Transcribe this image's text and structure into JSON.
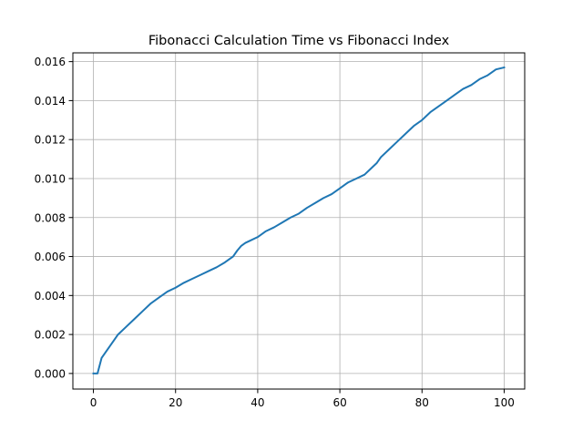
{
  "chart_data": {
    "type": "line",
    "title": "Fibonacci Calculation Time vs Fibonacci Index",
    "xlabel": "",
    "ylabel": "",
    "xlim": [
      -5,
      105
    ],
    "ylim": [
      -0.0008,
      0.01645
    ],
    "x_ticks": [
      0,
      20,
      40,
      60,
      80,
      100
    ],
    "x_tick_labels": [
      "0",
      "20",
      "40",
      "60",
      "80",
      "100"
    ],
    "y_ticks": [
      0,
      0.002,
      0.004,
      0.006,
      0.008,
      0.01,
      0.012,
      0.014,
      0.016
    ],
    "y_tick_labels": [
      "0.000",
      "0.002",
      "0.004",
      "0.006",
      "0.008",
      "0.010",
      "0.012",
      "0.014",
      "0.016"
    ],
    "grid": true,
    "legend": "none",
    "series": [
      {
        "color": "#1f77b4",
        "x": [
          0,
          1,
          2,
          4,
          6,
          8,
          10,
          12,
          14,
          16,
          18,
          20,
          22,
          24,
          26,
          28,
          30,
          32,
          34,
          35,
          36,
          37,
          38,
          40,
          42,
          44,
          46,
          48,
          50,
          52,
          54,
          56,
          58,
          60,
          62,
          64,
          66,
          68,
          69,
          70,
          72,
          74,
          76,
          78,
          80,
          82,
          84,
          86,
          88,
          90,
          92,
          94,
          96,
          98,
          100
        ],
        "y": [
          0.0,
          0.0,
          0.0008,
          0.0014,
          0.002,
          0.0024,
          0.0028,
          0.0032,
          0.0036,
          0.0039,
          0.0042,
          0.0044,
          0.00465,
          0.00485,
          0.00505,
          0.00525,
          0.00545,
          0.0057,
          0.006,
          0.0063,
          0.00655,
          0.0067,
          0.0068,
          0.007,
          0.0073,
          0.0075,
          0.00775,
          0.008,
          0.0082,
          0.0085,
          0.00875,
          0.009,
          0.0092,
          0.0095,
          0.0098,
          0.01,
          0.0102,
          0.0106,
          0.0108,
          0.0111,
          0.0115,
          0.0119,
          0.0123,
          0.0127,
          0.013,
          0.0134,
          0.0137,
          0.014,
          0.0143,
          0.0146,
          0.0148,
          0.0151,
          0.0153,
          0.0156,
          0.0157
        ]
      }
    ]
  }
}
